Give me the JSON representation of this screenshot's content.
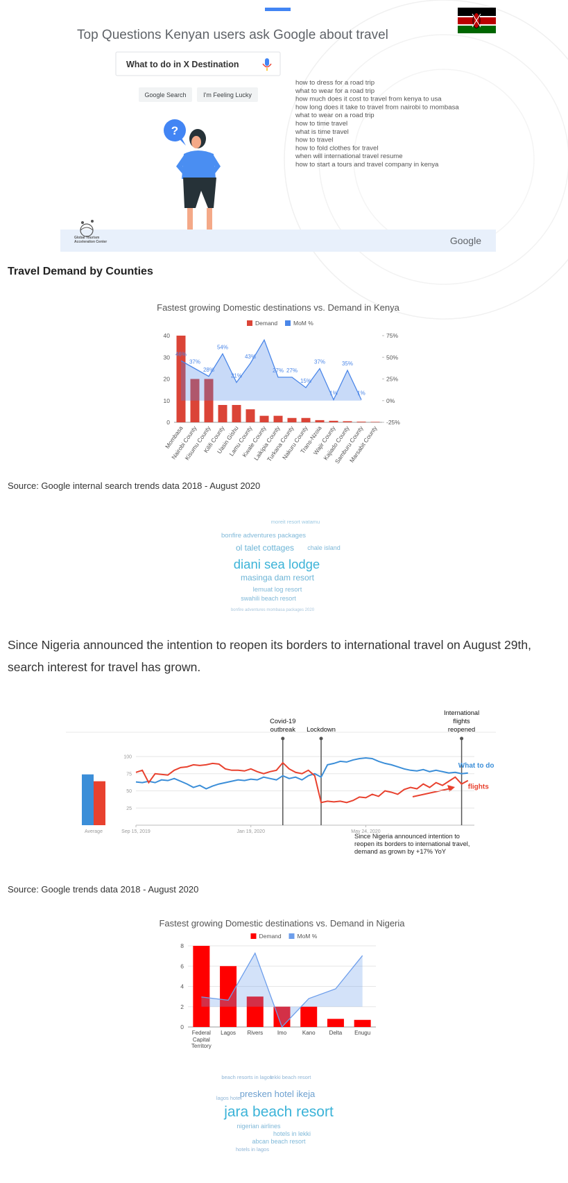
{
  "infographic": {
    "title": "Top Questions Kenyan users ask Google about travel",
    "search_query": "What to do in X Destination",
    "buttons": [
      "Google Search",
      "I'm Feeling Lucky"
    ],
    "questions": [
      "how to dress for a road trip",
      "what to wear for a road trip",
      "how much does it cost to travel from kenya to usa",
      "how long does it take to travel from nairobi to mombasa",
      "what to wear on a road trip",
      "how to time travel",
      "what is time travel",
      "how to travel",
      "how to fold clothes for travel",
      "when will international travel resume",
      "how to start a tours and travel company in kenya"
    ],
    "bubble": "?",
    "logo_text": "Global Tourism Acceleration Center",
    "brand": "Google"
  },
  "heading": "Travel Demand by Counties",
  "sources": [
    "Source: Google internal search trends data 2018 - August 2020",
    "Source: Google trends data 2018 - August 2020"
  ],
  "paragraph": "Since Nigeria announced the intention to reopen its borders to international travel on August 29th, search interest for travel has grown.",
  "wordclouds": [
    {
      "words": [
        "diani sea lodge",
        "masinga dam resort",
        "ol talet cottages",
        "bonfire adventures packages",
        "chale island",
        "lemuat log resort",
        "swahili beach resort",
        "moreit resort watamu",
        "bonfire adventures mombasa packages 2020"
      ]
    },
    {
      "words": [
        "jara beach resort",
        "presken hotel ikeja",
        "nigerian airlines",
        "hotels in lekki",
        "abcan beach resort",
        "hotels in lagos",
        "beach resorts in lagos",
        "lagos hotel",
        "lekki beach resort"
      ]
    }
  ],
  "chart_data": [
    {
      "type": "bar",
      "title": "Fastest growing Domestic destinations vs. Demand in Kenya",
      "categories": [
        "Mombasa",
        "Nairobi County",
        "Kisumu County",
        "Kilifi County",
        "Uasin Gishu",
        "Lamu County",
        "Kwale County",
        "Laikipia County",
        "Turkana County",
        "Nakuru County",
        "Trans-Nzoia",
        "Wajir County",
        "Kajiado County",
        "Samburu County",
        "Marsabit County"
      ],
      "series": [
        {
          "name": "Demand",
          "color": "#db4437",
          "values": [
            40,
            20,
            20,
            8,
            8,
            6,
            3,
            3,
            2,
            2,
            1,
            0.7,
            0.5,
            0.3,
            0.2
          ]
        },
        {
          "name": "MoM %",
          "color": "#4a86e8",
          "axis": "y2",
          "type": "area",
          "values": [
            46,
            37,
            28,
            54,
            21,
            43,
            70,
            27,
            27,
            15,
            37,
            1,
            35,
            1,
            null
          ],
          "value_labels": [
            "46%",
            "37%",
            "28%",
            "54%",
            "21%",
            "43%",
            null,
            "27%",
            "27%",
            "15%",
            "37%",
            "1%",
            "35%",
            "1%",
            null
          ]
        }
      ],
      "ylim": [
        0,
        40
      ],
      "yticks": [
        0,
        10,
        20,
        30,
        40
      ],
      "y2lim": [
        -25,
        75
      ],
      "y2ticks": [
        {
          "value": -25,
          "label": "-25%"
        },
        {
          "value": 0,
          "label": "0%"
        },
        {
          "value": 25,
          "label": "25%"
        },
        {
          "value": 50,
          "label": "50%"
        },
        {
          "value": 75,
          "label": "75%"
        }
      ],
      "grid": false,
      "legend": "top"
    },
    {
      "type": "line",
      "series": [
        {
          "name": "What to do",
          "color": "#3b8ed8",
          "average": 74,
          "values": [
            63,
            62,
            64,
            62,
            66,
            65,
            68,
            64,
            60,
            55,
            58,
            53,
            57,
            60,
            62,
            64,
            66,
            65,
            67,
            66,
            70,
            68,
            66,
            72,
            68,
            70,
            66,
            72,
            75,
            70,
            88,
            90,
            93,
            92,
            95,
            97,
            98,
            97,
            93,
            90,
            88,
            85,
            82,
            80,
            79,
            81,
            78,
            80,
            78,
            76,
            77,
            75,
            76
          ]
        },
        {
          "name": "flights",
          "color": "#e8412e",
          "average": 64,
          "values": [
            77,
            80,
            62,
            75,
            74,
            73,
            80,
            84,
            85,
            88,
            87,
            88,
            90,
            89,
            82,
            80,
            80,
            79,
            82,
            78,
            75,
            78,
            80,
            91,
            82,
            77,
            75,
            80,
            72,
            33,
            35,
            34,
            35,
            33,
            36,
            41,
            40,
            45,
            42,
            50,
            48,
            45,
            52,
            55,
            53,
            60,
            55,
            62,
            58,
            64,
            70,
            60,
            65
          ]
        }
      ],
      "average_label": "Average",
      "ylim": [
        0,
        100
      ],
      "yticks": [
        25,
        50,
        75,
        100
      ],
      "xlim": [
        0,
        53
      ],
      "xticks": [
        {
          "value": 0,
          "label": "Sep 15, 2019"
        },
        {
          "value": 18,
          "label": "Jan 19, 2020"
        },
        {
          "value": 36,
          "label": "May 24, 2020"
        }
      ],
      "events": [
        {
          "label": "Covid-19 outbreak",
          "x": 23
        },
        {
          "label": "Lockdown",
          "x": 29
        },
        {
          "label": "International flights reopened",
          "x": 51
        }
      ],
      "note": "Since Nigeria announced intention to reopen its borders to international travel, demand as grown by +17% YoY",
      "grid": true
    },
    {
      "type": "bar",
      "title": "Fastest growing Domestic destinations vs. Demand in Nigeria",
      "categories": [
        "Federal Capital Territory",
        "Lagos",
        "Rivers",
        "Imo",
        "Kano",
        "Delta",
        "Enugu"
      ],
      "series": [
        {
          "name": "Demand",
          "color": "#ff0000",
          "values": [
            8,
            6,
            3,
            2,
            2,
            0.8,
            0.7
          ]
        },
        {
          "name": "MoM %",
          "color": "#6d9eeb",
          "axis": "y2",
          "type": "area",
          "values": [
            12,
            8,
            66,
            -25,
            10,
            22,
            63
          ]
        }
      ],
      "ylim": [
        0,
        8
      ],
      "yticks": [
        0,
        2,
        4,
        6,
        8
      ],
      "y2lim": [
        -25,
        75
      ],
      "grid": true,
      "legend": "top"
    }
  ]
}
